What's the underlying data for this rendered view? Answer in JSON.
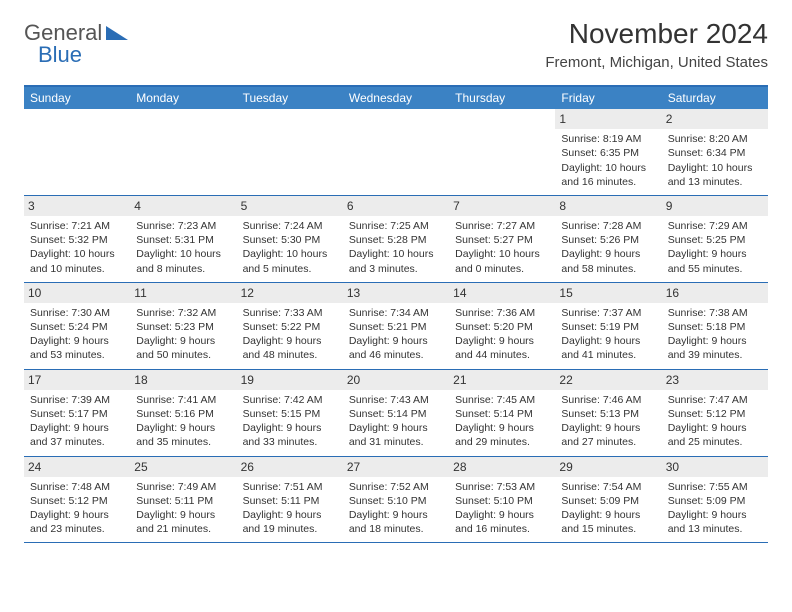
{
  "logo": {
    "text1": "General",
    "text2": "Blue"
  },
  "title": {
    "month": "November 2024",
    "location": "Fremont, Michigan, United States"
  },
  "colors": {
    "accent": "#3b82c4",
    "border": "#2a6db5",
    "shade": "#ececec"
  },
  "dow": [
    "Sunday",
    "Monday",
    "Tuesday",
    "Wednesday",
    "Thursday",
    "Friday",
    "Saturday"
  ],
  "weeks": [
    [
      null,
      null,
      null,
      null,
      null,
      {
        "n": "1",
        "sr": "8:19 AM",
        "ss": "6:35 PM",
        "dl": "10 hours and 16 minutes."
      },
      {
        "n": "2",
        "sr": "8:20 AM",
        "ss": "6:34 PM",
        "dl": "10 hours and 13 minutes."
      }
    ],
    [
      {
        "n": "3",
        "sr": "7:21 AM",
        "ss": "5:32 PM",
        "dl": "10 hours and 10 minutes."
      },
      {
        "n": "4",
        "sr": "7:23 AM",
        "ss": "5:31 PM",
        "dl": "10 hours and 8 minutes."
      },
      {
        "n": "5",
        "sr": "7:24 AM",
        "ss": "5:30 PM",
        "dl": "10 hours and 5 minutes."
      },
      {
        "n": "6",
        "sr": "7:25 AM",
        "ss": "5:28 PM",
        "dl": "10 hours and 3 minutes."
      },
      {
        "n": "7",
        "sr": "7:27 AM",
        "ss": "5:27 PM",
        "dl": "10 hours and 0 minutes."
      },
      {
        "n": "8",
        "sr": "7:28 AM",
        "ss": "5:26 PM",
        "dl": "9 hours and 58 minutes."
      },
      {
        "n": "9",
        "sr": "7:29 AM",
        "ss": "5:25 PM",
        "dl": "9 hours and 55 minutes."
      }
    ],
    [
      {
        "n": "10",
        "sr": "7:30 AM",
        "ss": "5:24 PM",
        "dl": "9 hours and 53 minutes."
      },
      {
        "n": "11",
        "sr": "7:32 AM",
        "ss": "5:23 PM",
        "dl": "9 hours and 50 minutes."
      },
      {
        "n": "12",
        "sr": "7:33 AM",
        "ss": "5:22 PM",
        "dl": "9 hours and 48 minutes."
      },
      {
        "n": "13",
        "sr": "7:34 AM",
        "ss": "5:21 PM",
        "dl": "9 hours and 46 minutes."
      },
      {
        "n": "14",
        "sr": "7:36 AM",
        "ss": "5:20 PM",
        "dl": "9 hours and 44 minutes."
      },
      {
        "n": "15",
        "sr": "7:37 AM",
        "ss": "5:19 PM",
        "dl": "9 hours and 41 minutes."
      },
      {
        "n": "16",
        "sr": "7:38 AM",
        "ss": "5:18 PM",
        "dl": "9 hours and 39 minutes."
      }
    ],
    [
      {
        "n": "17",
        "sr": "7:39 AM",
        "ss": "5:17 PM",
        "dl": "9 hours and 37 minutes."
      },
      {
        "n": "18",
        "sr": "7:41 AM",
        "ss": "5:16 PM",
        "dl": "9 hours and 35 minutes."
      },
      {
        "n": "19",
        "sr": "7:42 AM",
        "ss": "5:15 PM",
        "dl": "9 hours and 33 minutes."
      },
      {
        "n": "20",
        "sr": "7:43 AM",
        "ss": "5:14 PM",
        "dl": "9 hours and 31 minutes."
      },
      {
        "n": "21",
        "sr": "7:45 AM",
        "ss": "5:14 PM",
        "dl": "9 hours and 29 minutes."
      },
      {
        "n": "22",
        "sr": "7:46 AM",
        "ss": "5:13 PM",
        "dl": "9 hours and 27 minutes."
      },
      {
        "n": "23",
        "sr": "7:47 AM",
        "ss": "5:12 PM",
        "dl": "9 hours and 25 minutes."
      }
    ],
    [
      {
        "n": "24",
        "sr": "7:48 AM",
        "ss": "5:12 PM",
        "dl": "9 hours and 23 minutes."
      },
      {
        "n": "25",
        "sr": "7:49 AM",
        "ss": "5:11 PM",
        "dl": "9 hours and 21 minutes."
      },
      {
        "n": "26",
        "sr": "7:51 AM",
        "ss": "5:11 PM",
        "dl": "9 hours and 19 minutes."
      },
      {
        "n": "27",
        "sr": "7:52 AM",
        "ss": "5:10 PM",
        "dl": "9 hours and 18 minutes."
      },
      {
        "n": "28",
        "sr": "7:53 AM",
        "ss": "5:10 PM",
        "dl": "9 hours and 16 minutes."
      },
      {
        "n": "29",
        "sr": "7:54 AM",
        "ss": "5:09 PM",
        "dl": "9 hours and 15 minutes."
      },
      {
        "n": "30",
        "sr": "7:55 AM",
        "ss": "5:09 PM",
        "dl": "9 hours and 13 minutes."
      }
    ]
  ],
  "labels": {
    "sunrise": "Sunrise:",
    "sunset": "Sunset:",
    "daylight": "Daylight:"
  }
}
